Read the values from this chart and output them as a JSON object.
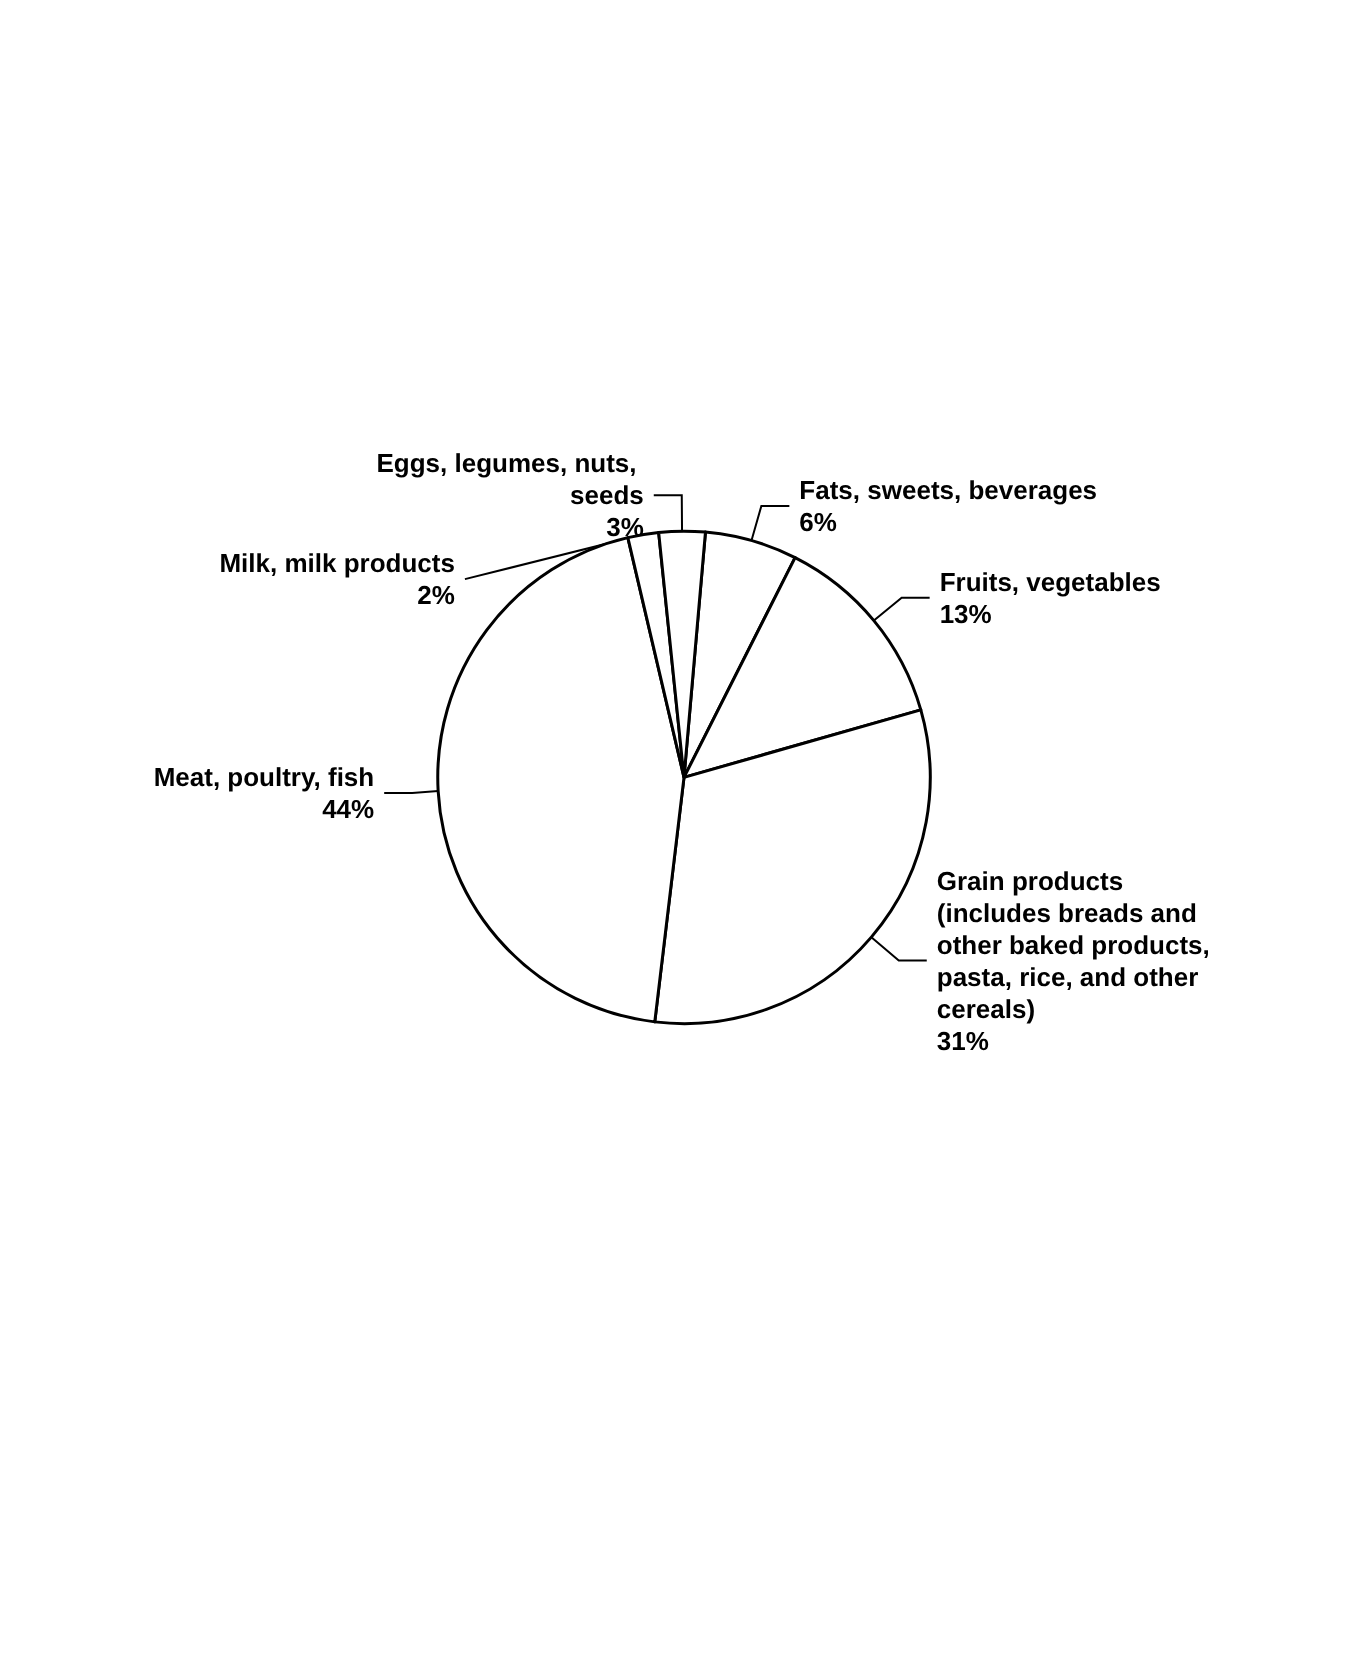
{
  "chart_data": {
    "type": "pie",
    "categories": [
      "Fats, sweets, beverages",
      "Fruits, vegetables",
      "Grain products (includes breads and other baked products, pasta, rice, and other cereals)",
      "Meat, poultry, fish",
      "Milk, milk products",
      "Eggs, legumes, nuts, seeds"
    ],
    "values": [
      6,
      13,
      31,
      44,
      2,
      3
    ],
    "value_labels": [
      "6%",
      "13%",
      "31%",
      "44%",
      "2%",
      "3%"
    ],
    "colors": [
      "#ffffff",
      "#ffffff",
      "#ffffff",
      "#ffffff",
      "#ffffff",
      "#ffffff"
    ]
  }
}
